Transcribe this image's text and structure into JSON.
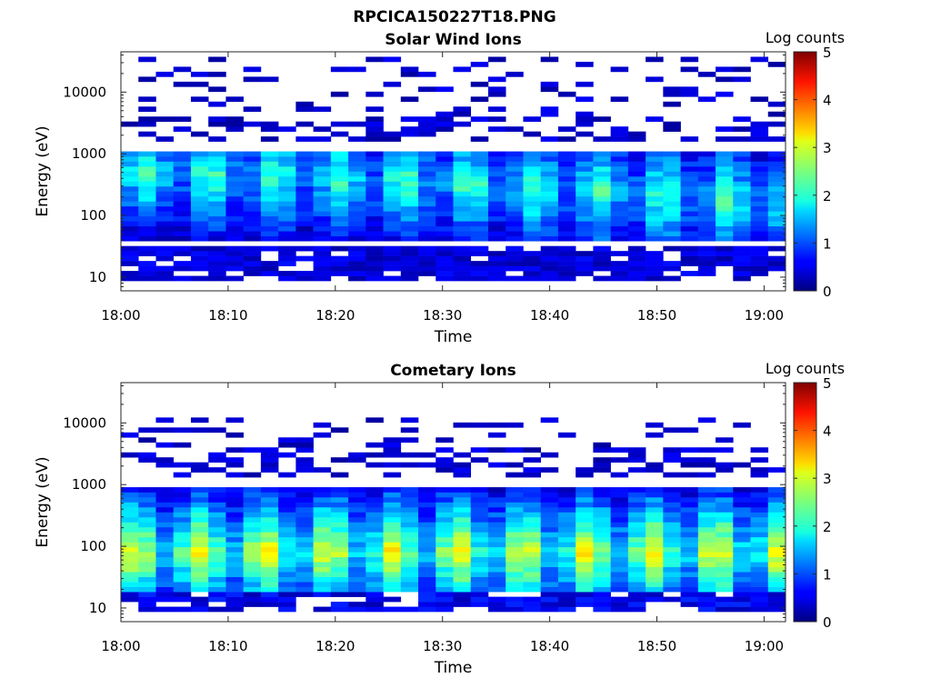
{
  "figure_title": "RPCICA150227T18.PNG",
  "chart_data": [
    {
      "type": "heatmap",
      "title": "Solar Wind Ions",
      "xlabel": "Time",
      "ylabel": "Energy (eV)",
      "yscale": "log",
      "xlim": [
        "18:00",
        "19:02"
      ],
      "ylim": [
        6,
        45000
      ],
      "x_ticks": [
        "18:00",
        "18:10",
        "18:20",
        "18:30",
        "18:40",
        "18:50",
        "19:00"
      ],
      "y_ticks": [
        "10",
        "100",
        "1000",
        "10000"
      ],
      "colorbar": {
        "label": "Log counts",
        "range": [
          0,
          5
        ],
        "ticks": [
          "0",
          "1",
          "2",
          "3",
          "4",
          "5"
        ],
        "colormap": "jet"
      },
      "n_time_bins": 38,
      "n_energy_bins": 48,
      "grid": false,
      "description_profile": {
        "low_energy_band_eV": [
          8,
          30
        ],
        "low_energy_log_counts": 0.5,
        "main_band_eV": [
          40,
          1000
        ],
        "main_band_log_counts_peak": 2.0,
        "main_band_peak_eV_early": 500,
        "main_band_peak_eV_late": 150,
        "sparse_high_energy_eV": [
          1500,
          40000
        ],
        "sparse_high_energy_log_counts": 0.3
      }
    },
    {
      "type": "heatmap",
      "title": "Cometary Ions",
      "xlabel": "Time",
      "ylabel": "Energy (eV)",
      "yscale": "log",
      "xlim": [
        "18:00",
        "19:02"
      ],
      "ylim": [
        6,
        45000
      ],
      "x_ticks": [
        "18:00",
        "18:10",
        "18:20",
        "18:30",
        "18:40",
        "18:50",
        "19:00"
      ],
      "y_ticks": [
        "10",
        "100",
        "1000",
        "10000"
      ],
      "colorbar": {
        "label": "Log counts",
        "range": [
          0,
          5
        ],
        "ticks": [
          "0",
          "1",
          "2",
          "3",
          "4",
          "5"
        ],
        "colormap": "jet"
      },
      "n_time_bins": 38,
      "n_energy_bins": 48,
      "grid": false,
      "description_profile": {
        "low_energy_band_eV": [
          8,
          20
        ],
        "low_energy_log_counts": 0.6,
        "main_band_eV": [
          20,
          900
        ],
        "main_band_log_counts_peak": 2.8,
        "main_band_peak_eV": 80,
        "sparse_high_energy_eV": [
          1200,
          12000
        ],
        "sparse_high_energy_log_counts": 0.3
      }
    }
  ]
}
